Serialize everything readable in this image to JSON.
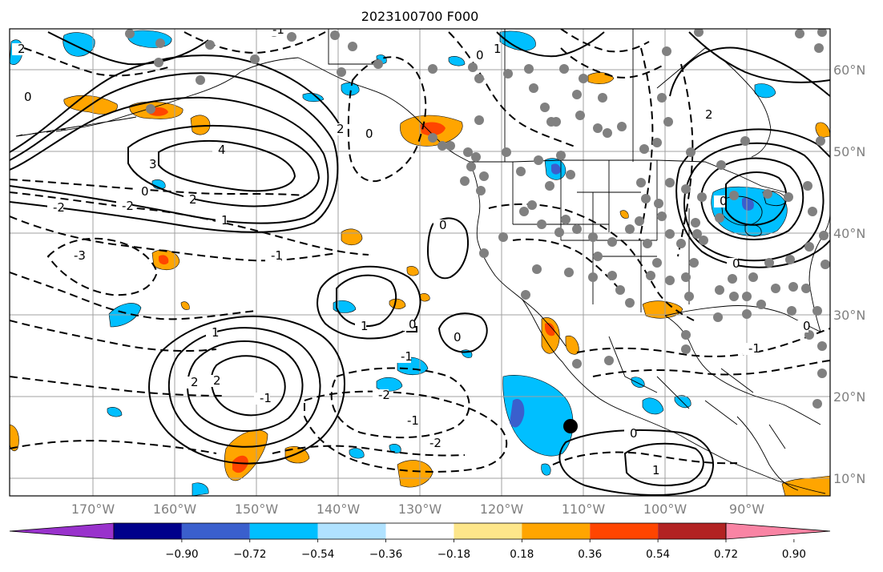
{
  "title": "2023100700 F000",
  "map": {
    "lat_labels": [
      "60°N",
      "50°N",
      "40°N",
      "30°N",
      "20°N",
      "10°N"
    ],
    "lon_labels": [
      "170°W",
      "160°W",
      "150°W",
      "140°W",
      "130°W",
      "120°W",
      "110°W",
      "100°W",
      "90°W"
    ],
    "contour_labels": [
      "2",
      "0",
      "4",
      "3",
      "0",
      "2",
      "-2",
      "-2",
      "-3",
      "-1",
      "1",
      "0",
      "2",
      "0",
      "0",
      "-1",
      "1",
      "0",
      "1",
      "2",
      "2",
      "-1",
      "-2",
      "-1",
      "0",
      "-2",
      "-1",
      "0",
      "0",
      "-1",
      "1",
      "2",
      "0",
      "0",
      "1"
    ],
    "colors": {
      "positive_contour": "#000000",
      "negative_contour": "#000000",
      "gridline": "#a0a0a0",
      "coastline": "#000000",
      "station_marker": "#808080",
      "storm_marker": "#000000"
    }
  },
  "colorbar": {
    "ticks": [
      "−0.90",
      "−0.72",
      "−0.54",
      "−0.36",
      "−0.18",
      "0.18",
      "0.36",
      "0.54",
      "0.72",
      "0.90"
    ],
    "colors": [
      "#9932cc",
      "#00008b",
      "#3a5fcd",
      "#00bfff",
      "#b0e2ff",
      "#ffffff",
      "#fde68a",
      "#ffa500",
      "#ff4500",
      "#b22222",
      "#f984a4"
    ]
  }
}
